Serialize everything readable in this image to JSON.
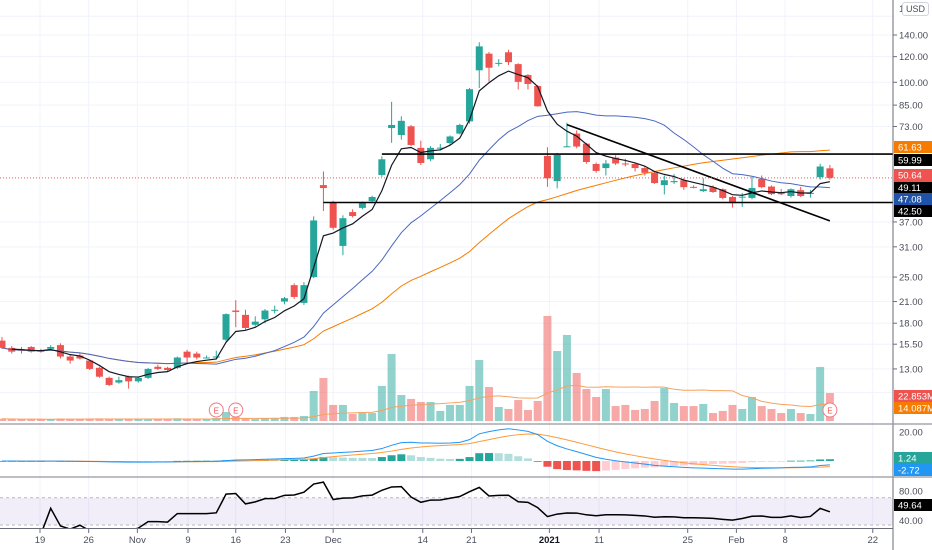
{
  "header": {
    "currency": "USD",
    "top_cut_label": "1"
  },
  "chart_data": {
    "type": "candlestick",
    "price_scale": "log",
    "colors": {
      "up": "#26a69a",
      "down": "#ef5350",
      "grid": "#f0f3fa",
      "last_price": "#ef5350"
    },
    "y_ticks": [
      "140.00",
      "120.00",
      "100.00",
      "85.00",
      "73.00",
      "37.00",
      "31.00",
      "25.00",
      "21.00",
      "18.00",
      "15.50",
      "13.00"
    ],
    "x_ticks": [
      {
        "label": "19",
        "bar": 3.9
      },
      {
        "label": "26",
        "bar": 8.9
      },
      {
        "label": "Nov",
        "bar": 13.9
      },
      {
        "label": "9",
        "bar": 19.1
      },
      {
        "label": "16",
        "bar": 24.0
      },
      {
        "label": "23",
        "bar": 29.1
      },
      {
        "label": "Dec",
        "bar": 34.0
      },
      {
        "label": "14",
        "bar": 43.2
      },
      {
        "label": "21",
        "bar": 48.2
      },
      {
        "label": "2021",
        "bar": 56.2,
        "bold": true
      },
      {
        "label": "11",
        "bar": 61.3
      },
      {
        "label": "25",
        "bar": 70.4
      },
      {
        "label": "Feb",
        "bar": 75.4
      },
      {
        "label": "8",
        "bar": 80.4
      },
      {
        "label": "22",
        "bar": 89.4
      }
    ],
    "candles": [
      [
        15.9,
        16.3,
        15.0,
        15.1
      ],
      [
        15.1,
        15.3,
        14.5,
        14.7
      ],
      [
        14.9,
        15.2,
        14.5,
        14.8
      ],
      [
        15.2,
        15.3,
        14.6,
        14.7
      ],
      [
        14.8,
        15.0,
        14.6,
        14.7
      ],
      [
        15.0,
        15.4,
        14.9,
        15.2
      ],
      [
        15.4,
        15.6,
        14.0,
        14.2
      ],
      [
        14.2,
        14.4,
        13.5,
        13.8
      ],
      [
        14.3,
        14.5,
        13.9,
        14.0
      ],
      [
        13.8,
        13.9,
        12.9,
        13.0
      ],
      [
        13.1,
        13.2,
        12.2,
        12.3
      ],
      [
        12.2,
        12.3,
        11.5,
        11.6
      ],
      [
        11.8,
        12.3,
        11.7,
        12.0
      ],
      [
        12.3,
        12.4,
        11.3,
        11.9
      ],
      [
        11.9,
        12.3,
        11.8,
        12.2
      ],
      [
        12.2,
        13.1,
        12.1,
        13.0
      ],
      [
        13.2,
        13.4,
        12.9,
        13.0
      ],
      [
        13.1,
        13.2,
        12.8,
        12.9
      ],
      [
        13.1,
        14.2,
        13.0,
        14.1
      ],
      [
        14.7,
        14.9,
        13.6,
        14.1
      ],
      [
        14.5,
        14.7,
        13.9,
        14.1
      ],
      [
        14.1,
        14.3,
        14.0,
        14.1
      ],
      [
        14.1,
        14.8,
        14.0,
        14.2
      ],
      [
        16.0,
        19.3,
        15.8,
        19.2
      ],
      [
        19.7,
        21.2,
        17.5,
        19.5
      ],
      [
        19.1,
        19.8,
        17.2,
        17.4
      ],
      [
        17.8,
        18.9,
        17.6,
        18.2
      ],
      [
        18.5,
        19.9,
        18.0,
        19.7
      ],
      [
        19.7,
        20.4,
        19.3,
        19.8
      ],
      [
        21.0,
        21.7,
        20.6,
        21.5
      ],
      [
        23.6,
        23.9,
        21.4,
        21.7
      ],
      [
        20.8,
        24.1,
        20.5,
        23.6
      ],
      [
        25.0,
        38.5,
        24.8,
        37.4
      ],
      [
        48.1,
        53.0,
        40.0,
        47.1
      ],
      [
        42.6,
        43.0,
        35.0,
        35.5
      ],
      [
        31.2,
        38.8,
        29.2,
        38.0
      ],
      [
        39.7,
        40.5,
        38.2,
        38.6
      ],
      [
        40.9,
        42.8,
        40.5,
        42.6
      ],
      [
        42.9,
        44.6,
        42.5,
        44.2
      ],
      [
        51.7,
        59.0,
        51.0,
        57.8
      ],
      [
        72.2,
        87.0,
        65.0,
        73.8
      ],
      [
        68.7,
        78.5,
        66.5,
        76.0
      ],
      [
        73.1,
        73.8,
        63.5,
        64.0
      ],
      [
        62.7,
        66.0,
        55.5,
        56.3
      ],
      [
        57.8,
        63.5,
        57.0,
        62.7
      ],
      [
        62.7,
        64.5,
        61.5,
        62.8
      ],
      [
        64.9,
        68.5,
        64.0,
        68.0
      ],
      [
        69.4,
        74.5,
        69.0,
        73.8
      ],
      [
        75.7,
        96.0,
        74.5,
        95.2
      ],
      [
        108.9,
        133.0,
        96.0,
        129.1
      ],
      [
        122.6,
        124.0,
        100.5,
        110.9
      ],
      [
        114.6,
        118.0,
        112.0,
        114.8
      ],
      [
        123.8,
        126.0,
        113.0,
        115.4
      ],
      [
        113.8,
        114.5,
        95.0,
        100.3
      ],
      [
        105.3,
        106.0,
        95.0,
        98.8
      ],
      [
        97.4,
        98.0,
        84.0,
        84.3
      ],
      [
        59.2,
        63.0,
        47.5,
        50.5
      ],
      [
        49.5,
        60.5,
        47.0,
        59.6
      ],
      [
        63.3,
        75.0,
        63.0,
        63.4
      ],
      [
        69.4,
        71.0,
        62.5,
        63.3
      ],
      [
        64.6,
        65.0,
        56.0,
        56.7
      ],
      [
        55.9,
        56.5,
        52.5,
        53.2
      ],
      [
        54.3,
        57.5,
        51.5,
        56.1
      ],
      [
        58.5,
        59.5,
        55.5,
        56.1
      ],
      [
        56.1,
        58.0,
        55.0,
        55.8
      ],
      [
        55.9,
        56.5,
        53.0,
        54.3
      ],
      [
        54.3,
        55.0,
        51.5,
        52.5
      ],
      [
        52.5,
        53.0,
        48.5,
        48.8
      ],
      [
        48.1,
        51.5,
        45.0,
        49.8
      ],
      [
        49.1,
        52.0,
        48.5,
        49.5
      ],
      [
        49.8,
        50.5,
        46.5,
        47.4
      ],
      [
        47.5,
        48.0,
        47.0,
        47.3
      ],
      [
        46.1,
        50.5,
        45.8,
        46.7
      ],
      [
        47.4,
        48.0,
        45.5,
        45.8
      ],
      [
        46.7,
        47.0,
        43.5,
        43.9
      ],
      [
        44.2,
        44.5,
        41.0,
        42.3
      ],
      [
        44.2,
        45.5,
        41.2,
        44.3
      ],
      [
        43.9,
        51.0,
        43.5,
        47.1
      ],
      [
        50.3,
        51.5,
        47.0,
        47.4
      ],
      [
        47.6,
        48.0,
        44.8,
        45.1
      ],
      [
        45.4,
        46.8,
        44.8,
        45.1
      ],
      [
        44.5,
        47.0,
        44.0,
        46.7
      ],
      [
        46.4,
        47.5,
        44.2,
        44.5
      ],
      [
        45.4,
        46.5,
        44.0,
        45.5
      ],
      [
        50.9,
        56.0,
        50.0,
        54.9
      ],
      [
        54.2,
        55.5,
        50.0,
        50.64
      ]
    ],
    "volume_millions": [
      1.8,
      1.5,
      1.2,
      1.6,
      1.3,
      1.4,
      2.0,
      1.7,
      1.5,
      1.9,
      2.1,
      1.8,
      1.4,
      1.6,
      1.3,
      2.0,
      1.5,
      1.4,
      2.2,
      1.9,
      1.6,
      1.5,
      2.5,
      7.3,
      3.3,
      2.4,
      1.6,
      2.4,
      2.4,
      3.3,
      3.3,
      4.1,
      24.5,
      35.1,
      13.1,
      13.1,
      5.7,
      6.5,
      6.5,
      28.6,
      54.7,
      21.2,
      18.0,
      15.5,
      15.5,
      8.2,
      13.1,
      13.1,
      28.6,
      49.8,
      27.7,
      11.4,
      9.8,
      17.1,
      9.0,
      16.3,
      85.7,
      57.1,
      70.2,
      39.2,
      26.1,
      19.6,
      26.1,
      12.2,
      13.1,
      9.0,
      9.8,
      16.3,
      26.9,
      14.7,
      12.2,
      12.2,
      13.9,
      6.5,
      8.2,
      13.1,
      9.8,
      19.6,
      12.2,
      9.8,
      6.5,
      9.8,
      6.5,
      5.7,
      44.1,
      22.853
    ],
    "overlay_colors": {
      "fast": "#131722",
      "mid": "#4a68c2",
      "slow": "#f57c00",
      "volume_ma": "#f5a25d"
    },
    "horizontal_lines": [
      {
        "price": 59.99,
        "from_bar": 39
      },
      {
        "price": 42.5,
        "from_bar": 33
      }
    ],
    "trend_line": {
      "from": {
        "bar": 58,
        "price": 74.0
      },
      "to": {
        "bar": 85,
        "price": 37.3
      }
    },
    "last_price": 50.64,
    "price_tags": [
      {
        "value": "61.63",
        "color": "#f57c00"
      },
      {
        "value": "59.99",
        "color": "#000000"
      },
      {
        "value": "50.64",
        "color": "#ef5350"
      },
      {
        "value": "49.11",
        "color": "#000000"
      },
      {
        "value": "47.08",
        "color": "#1e53a8"
      },
      {
        "value": "42.50",
        "color": "#000000"
      }
    ],
    "volume_tags": [
      {
        "value": "22.853M",
        "color": "#ef5350"
      },
      {
        "value": "14.087M",
        "color": "#f57c00"
      }
    ],
    "earnings_markers": [
      {
        "bar": 22,
        "label": "E"
      },
      {
        "bar": 24,
        "label": "E"
      },
      {
        "bar": 85,
        "label": "E"
      }
    ],
    "macd": {
      "y_ticks": [
        "20.00"
      ],
      "colors": {
        "macd": "#2196f3",
        "signal": "#ff9a3c",
        "up_strong": "#26a69a",
        "up_weak": "#b2dfdb",
        "down_strong": "#ef5350",
        "down_weak": "#ffcdd2"
      },
      "tags": [
        {
          "value": "1.24",
          "color": "#26a69a"
        },
        {
          "value": "-2.72",
          "color": "#2196f3"
        }
      ]
    },
    "rsi": {
      "y_ticks": [
        "80.00",
        "40.00"
      ],
      "band": [
        30,
        70
      ],
      "line_color": "#000000",
      "band_color": "#7e57c2",
      "tag": {
        "value": "49.64",
        "color": "#000000"
      }
    }
  }
}
